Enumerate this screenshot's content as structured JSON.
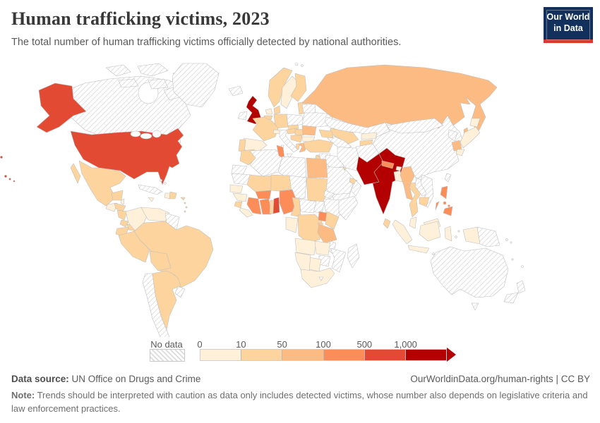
{
  "header": {
    "title": "Human trafficking victims, 2023",
    "subtitle": "The total number of human trafficking victims officially detected by national authorities.",
    "logo_line1": "Our World",
    "logo_line2": "in Data"
  },
  "legend": {
    "no_data_label": "No data",
    "ticks": [
      "0",
      "10",
      "50",
      "100",
      "500",
      "1,000"
    ],
    "colors": [
      "#fef0d9",
      "#fdd49e",
      "#fdbb84",
      "#fc8d59",
      "#e34a33",
      "#b30000"
    ]
  },
  "footer": {
    "source_label": "Data source:",
    "source_text": " UN Office on Drugs and Crime",
    "link_text": "OurWorldinData.org/human-rights | CC BY",
    "note_label": "Note:",
    "note_text": " Trends should be interpreted with caution as data only includes detected victims, whose number also depends on legislative criteria and law enforcement practices."
  },
  "chart_data": {
    "type": "choropleth-map",
    "title": "Human trafficking victims, 2023",
    "band_labels": [
      "0-10",
      "10-50",
      "50-100",
      "100-500",
      "500-1,000",
      "1,000+"
    ],
    "no_data_value": -1,
    "countries": {
      "united-states": 4,
      "canada": -1,
      "greenland": -1,
      "mexico": 1,
      "belize": 0,
      "guatemala": 0,
      "honduras": 1,
      "nicaragua": 1,
      "costa-rica": 1,
      "panama": 1,
      "cuba": -1,
      "jamaica": 0,
      "haiti": 0,
      "dominican-republic": 1,
      "puerto-rico": 1,
      "bahamas": -1,
      "lesser-antilles": 1,
      "colombia": 0,
      "venezuela": 0,
      "guyanas": -1,
      "ecuador": 1,
      "peru": 1,
      "brazil": 1,
      "bolivia": 1,
      "paraguay": 0,
      "chile": -1,
      "argentina": 1,
      "uruguay": -1,
      "falklands": -1,
      "iceland": -1,
      "svalbard": -1,
      "united-kingdom": 5,
      "ireland": -1,
      "norway": 1,
      "sweden": 0,
      "finland": 1,
      "denmark": 1,
      "baltics": 1,
      "poland": -1,
      "germany": 1,
      "netherlands": 0,
      "belgium": 1,
      "france": 1,
      "spain": 0,
      "portugal": 1,
      "switzerland": 0,
      "italy": -1,
      "austria": 1,
      "czechia": 1,
      "hungary": 1,
      "west-balkans": 1,
      "albania": 1,
      "greece": 2,
      "romania": 2,
      "bulgaria": 0,
      "ukraine": -1,
      "belarus": -1,
      "russia": 2,
      "kazakhstan": -1,
      "uzbekistan": 1,
      "turkmenistan": -1,
      "kyrgyzstan": 0,
      "tajikistan": 1,
      "caucasus": 1,
      "turkey": 1,
      "cyprus": 1,
      "syria": -1,
      "israel-jordan": 1,
      "iraq": -1,
      "saudi-arabia": -1,
      "kuwait": 1,
      "gulf-states": 1,
      "yemen": -1,
      "oman": -1,
      "iran": -1,
      "afghanistan": -1,
      "pakistan": 5,
      "india": 5,
      "nepal": 3,
      "bhutan": 0,
      "bangladesh": 0,
      "sri-lanka": 1,
      "myanmar": 2,
      "thailand": 1,
      "laos": -1,
      "vietnam": -1,
      "cambodia": 1,
      "malaysia": 0,
      "china": -1,
      "mongolia": -1,
      "north-korea": -1,
      "south-korea": 2,
      "japan": 0,
      "taiwan": -1,
      "philippines": 3,
      "indonesia": 0,
      "papua-new-guinea": -1,
      "pacific-islands": -1,
      "australia": -1,
      "new-zealand": -1,
      "morocco": 1,
      "western-sahara": -1,
      "algeria": -1,
      "tunisia": 3,
      "libya": -1,
      "egypt": 2,
      "mauritania": -1,
      "mali": 1,
      "niger": 1,
      "chad": -1,
      "sudan": 1,
      "eritrea": -1,
      "ethiopia": -1,
      "somalia": -1,
      "south-sudan": -1,
      "senegal": 0,
      "guinea": 0,
      "sierra-leone": 1,
      "liberia": 0,
      "ivory-coast": 3,
      "burkina-faso": 3,
      "ghana": 3,
      "togo": 1,
      "benin": 4,
      "nigeria": 3,
      "cameroon": 1,
      "central-african-republic": -1,
      "gabon-congo": 0,
      "drc": 1,
      "uganda": 3,
      "kenya": 1,
      "rwanda-burundi": 1,
      "tanzania": 2,
      "angola": 0,
      "zambia": 0,
      "malawi": -1,
      "mozambique": -1,
      "zimbabwe": -1,
      "botswana": 0,
      "namibia": 0,
      "south-africa": 0,
      "lesotho": -1,
      "madagascar": -1
    }
  }
}
